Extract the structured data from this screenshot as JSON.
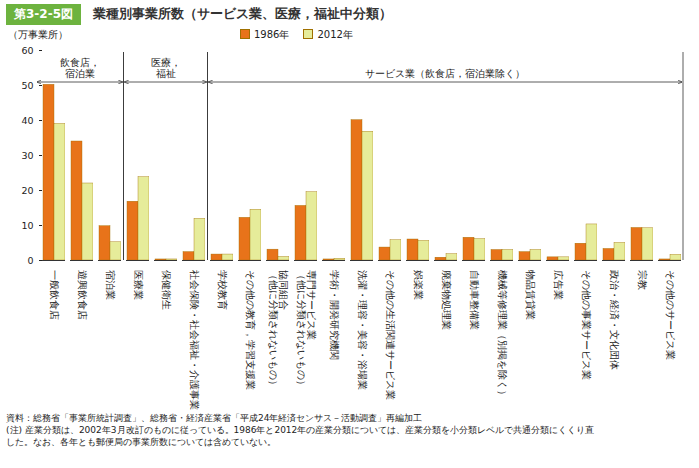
{
  "chart_data": {
    "type": "bar",
    "figure_label": "第3-2-5図",
    "title": "業種別事業所数（サービス業、医療，福祉中分類）",
    "y_label": "（万事業所）",
    "categories": [
      "一般飲食店",
      "遊興飲食店",
      "宿泊業",
      "医療業",
      "保健衛生",
      "社会保険・社会福祉・介護事業",
      "学校教育",
      "その他の教育，学習支援業",
      "協同組合\n（他に分類されないもの）",
      "専門サービス業\n（他に分類されないもの）",
      "学術・開発研究機関",
      "洗濯・理容・美容・浴場業",
      "その他の生活関連サービス業",
      "娯楽業",
      "廃棄物処理業",
      "自動車整備業",
      "機械等修理業（別掲を除く）",
      "物品賃貸業",
      "広告業",
      "その他の事業サービス業",
      "政治・経済・文化団体",
      "宗教",
      "その他のサービス業"
    ],
    "series": [
      {
        "name": "1986年",
        "color": "#e8731a",
        "values": [
          50.2,
          34.0,
          9.8,
          16.8,
          0.3,
          2.4,
          1.7,
          12.2,
          3.1,
          15.6,
          0.3,
          40.1,
          3.7,
          6.0,
          0.8,
          6.5,
          3.0,
          2.4,
          0.9,
          4.8,
          3.3,
          9.3,
          0.3
        ]
      },
      {
        "name": "2012年",
        "color": "#e6ec9a",
        "values": [
          39.0,
          22.0,
          5.2,
          23.8,
          0.3,
          11.9,
          1.7,
          14.5,
          1.0,
          19.5,
          0.5,
          36.8,
          5.8,
          5.6,
          1.8,
          6.1,
          3.0,
          3.0,
          0.9,
          10.3,
          5.0,
          9.2,
          1.6
        ]
      }
    ],
    "groups": [
      {
        "label": "飲食店，\n宿泊業",
        "from": "一般飲食店",
        "to": "宿泊業"
      },
      {
        "label": "医療，\n福祉",
        "from": "医療業",
        "to": "社会保険・社会福祉・介護事業"
      },
      {
        "label": "サービス業（飲食店，宿泊業除く）",
        "from": "学校教育",
        "to": "その他のサービス業"
      }
    ],
    "ylim": [
      0,
      60
    ],
    "yticks": [
      0,
      10,
      20,
      30,
      40,
      50,
      60
    ],
    "grid": false,
    "legend": "top",
    "notes": [
      "資料：総務省「事業所統計調査」、総務省・経済産業省「平成24年経済センサス－活動調査」再編加工",
      "(注) 産業分類は、2002年3月改訂のものに従っている。1986年と2012年の産業分類については、産業分類を小分類レベルで共通分類にくくり直",
      "した。なお、各年とも郵便局の事業所数については含めていない。"
    ]
  }
}
